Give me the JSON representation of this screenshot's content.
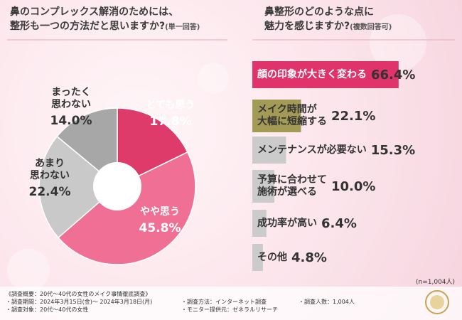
{
  "chart_data": [
    {
      "type": "pie",
      "title_lines": [
        "鼻のコンプレックス解消のためには、",
        "整形も一つの方法だと思いますか?"
      ],
      "subtitle": "(単一回答)",
      "categories": [
        "とても思う",
        "やや思う",
        "あまり\n思わない",
        "まったく\n思わない"
      ],
      "values": [
        17.8,
        45.8,
        22.4,
        14
      ],
      "value_labels": [
        "17.8%",
        "45.8%",
        "22.4%",
        "14.0%"
      ],
      "colors": [
        "#de3a6a",
        "#ef6f95",
        "#c9c9c9",
        "#a7a7a7"
      ]
    },
    {
      "type": "bar",
      "title_lines": [
        "鼻整形のどのような点に",
        "魅力を感じますか?"
      ],
      "subtitle": "(複数回答可)",
      "categories": [
        "顔の印象が大きく変わる",
        "メイク時間が\n大幅に短縮する",
        "メンテナンスが必要ない",
        "予算に合わせて\n施術が選べる",
        "成功率が高い",
        "その他"
      ],
      "values": [
        66.4,
        22.1,
        15.3,
        10,
        6.4,
        4.8
      ],
      "value_labels": [
        "66.4%",
        "22.1%",
        "15.3%",
        "10.0%",
        "6.4%",
        "4.8%"
      ],
      "colors": [
        "#e0336b",
        "#a39b55",
        "#cbcbcb",
        "#cbcbcb",
        "#cbcbcb",
        "#cbcbcb"
      ],
      "note": "(n=1,004人)"
    }
  ],
  "footer": {
    "items": [
      "《調査概要：20代～40代の女性のメイク事情徹底調査》",
      "・調査期間：2024年3月15日(金)～ 2024年3月18日(月)",
      "・調査対象：20代～40代の女性",
      "・調査方法：インターネット調査",
      "・モニター提供元：ゼネラルリサーチ",
      "・調査人数：1,004人"
    ]
  }
}
